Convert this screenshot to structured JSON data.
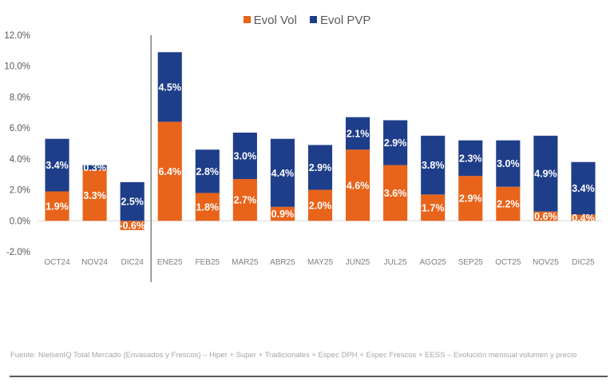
{
  "chart_data": {
    "type": "bar",
    "stacked": true,
    "title": "",
    "xlabel": "",
    "ylabel": "",
    "ylim": [
      -2.0,
      12.0
    ],
    "yticks": [
      "-2.0%",
      "0.0%",
      "2.0%",
      "4.0%",
      "6.0%",
      "8.0%",
      "10.0%",
      "12.0%"
    ],
    "ytick_values": [
      -2,
      0,
      2,
      4,
      6,
      8,
      10,
      12
    ],
    "grid": false,
    "legend_position": "top-center",
    "categories": [
      "OCT24",
      "NOV24",
      "DIC24",
      "ENE25",
      "FEB25",
      "MAR25",
      "ABR25",
      "MAY25",
      "JUN25",
      "JUL25",
      "AGO25",
      "SEP25",
      "OCT25",
      "NOV25",
      "DIC25"
    ],
    "series": [
      {
        "name": "Evol Vol",
        "color": "#E8641B",
        "values": [
          1.9,
          3.3,
          -0.6,
          6.4,
          1.8,
          2.7,
          0.9,
          2.0,
          4.6,
          3.6,
          1.7,
          2.9,
          2.2,
          0.6,
          0.4
        ],
        "labels": [
          "1.9%",
          "3.3%",
          "-0.6%",
          "6.4%",
          "1.8%",
          "2.7%",
          "0.9%",
          "2.0%",
          "4.6%",
          "3.6%",
          "1.7%",
          "2.9%",
          "2.2%",
          "0.6%",
          "0.4%"
        ]
      },
      {
        "name": "Evol PVP",
        "color": "#1F3E8A",
        "values": [
          3.4,
          0.3,
          2.5,
          4.5,
          2.8,
          3.0,
          4.4,
          2.9,
          2.1,
          2.9,
          3.8,
          2.3,
          3.0,
          4.9,
          3.4
        ],
        "labels": [
          "3.4%",
          "0.3%",
          "2.5%",
          "4.5%",
          "2.8%",
          "3.0%",
          "4.4%",
          "2.9%",
          "2.1%",
          "2.9%",
          "3.8%",
          "2.3%",
          "3.0%",
          "4.9%",
          "3.4%"
        ]
      }
    ],
    "separator_after_category": "DIC24"
  },
  "legend": {
    "items": [
      {
        "label": "Evol Vol",
        "color": "#E8641B"
      },
      {
        "label": "Evol PVP",
        "color": "#1F3E8A"
      }
    ]
  },
  "footer": {
    "source": "Fuente: NielsenIQ Total Mercado (Envasados y Frescos) – Hiper + Super + Tradicionales + Espec DPH + Espec Frescos + EESS – Evolución mensual volumen y precio"
  }
}
